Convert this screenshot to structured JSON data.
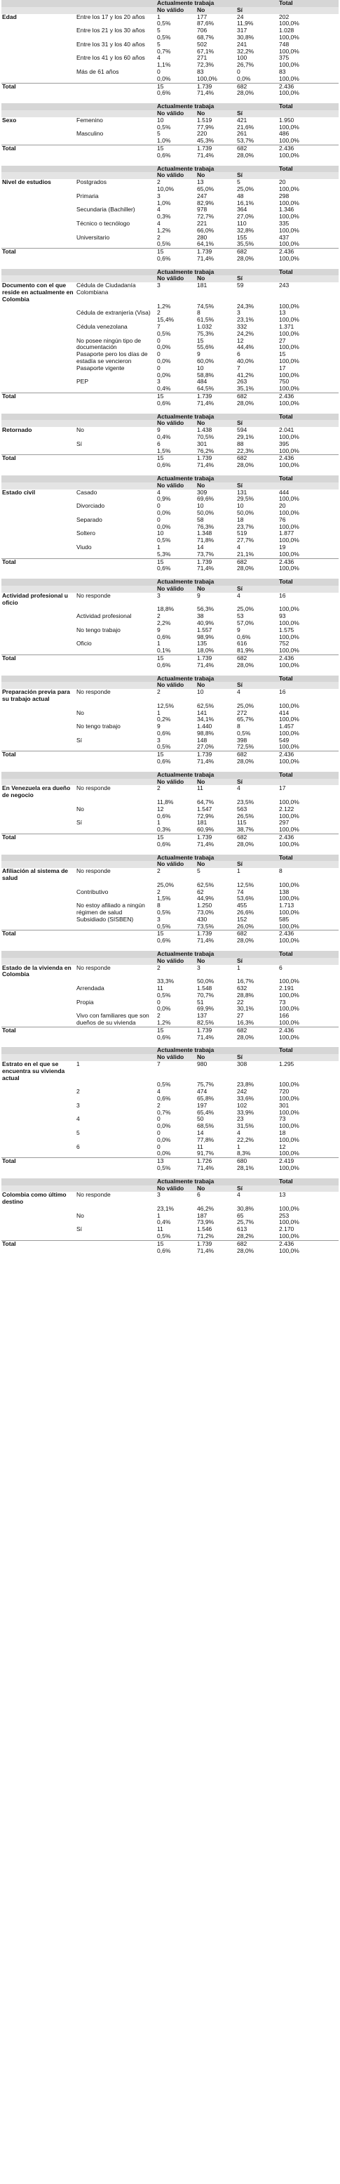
{
  "header": {
    "group_label": "Actualmente trabaja",
    "total_label": "Total",
    "columns": [
      "No válido",
      "No",
      "Sí"
    ]
  },
  "total_row_label": "Total",
  "sections": [
    {
      "variable": "Edad",
      "rows": [
        {
          "label": "Entre los 17 y los 20 años",
          "n": [
            "1",
            "177",
            "24",
            "202"
          ],
          "p": [
            "0,5%",
            "87,6%",
            "11,9%",
            "100,0%"
          ]
        },
        {
          "label": "Entre los 21 y los 30 años",
          "n": [
            "5",
            "706",
            "317",
            "1.028"
          ],
          "p": [
            "0,5%",
            "68,7%",
            "30,8%",
            "100,0%"
          ]
        },
        {
          "label": "Entre los 31 y los 40 años",
          "n": [
            "5",
            "502",
            "241",
            "748"
          ],
          "p": [
            "0,7%",
            "67,1%",
            "32,2%",
            "100,0%"
          ]
        },
        {
          "label": "Entre los 41 y los 60 años",
          "n": [
            "4",
            "271",
            "100",
            "375"
          ],
          "p": [
            "1,1%",
            "72,3%",
            "26,7%",
            "100,0%"
          ]
        },
        {
          "label": "Más de 61 años",
          "n": [
            "0",
            "83",
            "0",
            "83"
          ],
          "p": [
            "0,0%",
            "100,0%",
            "0,0%",
            "100,0%"
          ]
        }
      ],
      "total": {
        "n": [
          "15",
          "1.739",
          "682",
          "2.436"
        ],
        "p": [
          "0,6%",
          "71,4%",
          "28,0%",
          "100,0%"
        ]
      }
    },
    {
      "variable": "Sexo",
      "rows": [
        {
          "label": "Femenino",
          "n": [
            "10",
            "1.519",
            "421",
            "1.950"
          ],
          "p": [
            "0,5%",
            "77,9%",
            "21,6%",
            "100,0%"
          ]
        },
        {
          "label": "Masculino",
          "n": [
            "5",
            "220",
            "261",
            "486"
          ],
          "p": [
            "1,0%",
            "45,3%",
            "53,7%",
            "100,0%"
          ]
        }
      ],
      "total": {
        "n": [
          "15",
          "1.739",
          "682",
          "2.436"
        ],
        "p": [
          "0,6%",
          "71,4%",
          "28,0%",
          "100,0%"
        ]
      }
    },
    {
      "variable": "Nivel de estudios",
      "rows": [
        {
          "label": "Postgrados",
          "n": [
            "2",
            "13",
            "5",
            "20"
          ],
          "p": [
            "10,0%",
            "65,0%",
            "25,0%",
            "100,0%"
          ]
        },
        {
          "label": "Primaria",
          "n": [
            "3",
            "247",
            "48",
            "298"
          ],
          "p": [
            "1,0%",
            "82,9%",
            "16,1%",
            "100,0%"
          ]
        },
        {
          "label": "Secundaria (Bachiller)",
          "n": [
            "4",
            "978",
            "364",
            "1.346"
          ],
          "p": [
            "0,3%",
            "72,7%",
            "27,0%",
            "100,0%"
          ]
        },
        {
          "label": "Técnico o tecnólogo",
          "n": [
            "4",
            "221",
            "110",
            "335"
          ],
          "p": [
            "1,2%",
            "66,0%",
            "32,8%",
            "100,0%"
          ]
        },
        {
          "label": "Universitario",
          "n": [
            "2",
            "280",
            "155",
            "437"
          ],
          "p": [
            "0,5%",
            "64,1%",
            "35,5%",
            "100,0%"
          ]
        }
      ],
      "total": {
        "n": [
          "15",
          "1.739",
          "682",
          "2.436"
        ],
        "p": [
          "0,6%",
          "71,4%",
          "28,0%",
          "100,0%"
        ]
      }
    },
    {
      "variable": "Documento con el que reside en actualmente en Colombia",
      "rows": [
        {
          "label": "Cédula de Ciudadanía Colombiana",
          "n": [
            "3",
            "181",
            "59",
            "243"
          ],
          "p": [
            "1,2%",
            "74,5%",
            "24,3%",
            "100,0%"
          ]
        },
        {
          "label": "Cédula de extranjería (Visa)",
          "n": [
            "2",
            "8",
            "3",
            "13"
          ],
          "p": [
            "15,4%",
            "61,5%",
            "23,1%",
            "100,0%"
          ]
        },
        {
          "label": "Cédula venezolana",
          "n": [
            "7",
            "1.032",
            "332",
            "1.371"
          ],
          "p": [
            "0,5%",
            "75,3%",
            "24,2%",
            "100,0%"
          ]
        },
        {
          "label": "No posee ningún tipo de documentación",
          "n": [
            "0",
            "15",
            "12",
            "27"
          ],
          "p": [
            "0,0%",
            "55,6%",
            "44,4%",
            "100,0%"
          ]
        },
        {
          "label": "Pasaporte pero los días de estadía se vencieron",
          "n": [
            "0",
            "9",
            "6",
            "15"
          ],
          "p": [
            "0,0%",
            "60,0%",
            "40,0%",
            "100,0%"
          ]
        },
        {
          "label": "Pasaporte vigente",
          "n": [
            "0",
            "10",
            "7",
            "17"
          ],
          "p": [
            "0,0%",
            "58,8%",
            "41,2%",
            "100,0%"
          ]
        },
        {
          "label": "PEP",
          "n": [
            "3",
            "484",
            "263",
            "750"
          ],
          "p": [
            "0,4%",
            "64,5%",
            "35,1%",
            "100,0%"
          ]
        }
      ],
      "total": {
        "n": [
          "15",
          "1.739",
          "682",
          "2.436"
        ],
        "p": [
          "0,6%",
          "71,4%",
          "28,0%",
          "100,0%"
        ]
      }
    },
    {
      "variable": "Retornado",
      "rows": [
        {
          "label": "No",
          "n": [
            "9",
            "1.438",
            "594",
            "2.041"
          ],
          "p": [
            "0,4%",
            "70,5%",
            "29,1%",
            "100,0%"
          ]
        },
        {
          "label": "Sí",
          "n": [
            "6",
            "301",
            "88",
            "395"
          ],
          "p": [
            "1,5%",
            "76,2%",
            "22,3%",
            "100,0%"
          ]
        }
      ],
      "total": {
        "n": [
          "15",
          "1.739",
          "682",
          "2.436"
        ],
        "p": [
          "0,6%",
          "71,4%",
          "28,0%",
          "100,0%"
        ]
      }
    },
    {
      "variable": "Estado civil",
      "rows": [
        {
          "label": "Casado",
          "n": [
            "4",
            "309",
            "131",
            "444"
          ],
          "p": [
            "0,9%",
            "69,6%",
            "29,5%",
            "100,0%"
          ]
        },
        {
          "label": "Divorciado",
          "n": [
            "0",
            "10",
            "10",
            "20"
          ],
          "p": [
            "0,0%",
            "50,0%",
            "50,0%",
            "100,0%"
          ]
        },
        {
          "label": "Separado",
          "n": [
            "0",
            "58",
            "18",
            "76"
          ],
          "p": [
            "0,0%",
            "76,3%",
            "23,7%",
            "100,0%"
          ]
        },
        {
          "label": "Soltero",
          "n": [
            "10",
            "1.348",
            "519",
            "1.877"
          ],
          "p": [
            "0,5%",
            "71,8%",
            "27,7%",
            "100,0%"
          ]
        },
        {
          "label": "Viudo",
          "n": [
            "1",
            "14",
            "4",
            "19"
          ],
          "p": [
            "5,3%",
            "73,7%",
            "21,1%",
            "100,0%"
          ]
        }
      ],
      "total": {
        "n": [
          "15",
          "1.739",
          "682",
          "2.436"
        ],
        "p": [
          "0,6%",
          "71,4%",
          "28,0%",
          "100,0%"
        ]
      }
    },
    {
      "variable": "Actividad profesional u oficio",
      "rows": [
        {
          "label": "No responde",
          "n": [
            "3",
            "9",
            "4",
            "16"
          ],
          "p": [
            "18,8%",
            "56,3%",
            "25,0%",
            "100,0%"
          ]
        },
        {
          "label": "Actividad profesional",
          "n": [
            "2",
            "38",
            "53",
            "93"
          ],
          "p": [
            "2,2%",
            "40,9%",
            "57,0%",
            "100,0%"
          ]
        },
        {
          "label": "No tengo trabajo",
          "n": [
            "9",
            "1.557",
            "9",
            "1.575"
          ],
          "p": [
            "0,6%",
            "98,9%",
            "0,6%",
            "100,0%"
          ]
        },
        {
          "label": "Oficio",
          "n": [
            "1",
            "135",
            "616",
            "752"
          ],
          "p": [
            "0,1%",
            "18,0%",
            "81,9%",
            "100,0%"
          ]
        }
      ],
      "total": {
        "n": [
          "15",
          "1.739",
          "682",
          "2.436"
        ],
        "p": [
          "0,6%",
          "71,4%",
          "28,0%",
          "100,0%"
        ]
      }
    },
    {
      "variable": "Preparación previa para su trabajo actual",
      "rows": [
        {
          "label": "No responde",
          "n": [
            "2",
            "10",
            "4",
            "16"
          ],
          "p": [
            "12,5%",
            "62,5%",
            "25,0%",
            "100,0%"
          ]
        },
        {
          "label": "No",
          "n": [
            "1",
            "141",
            "272",
            "414"
          ],
          "p": [
            "0,2%",
            "34,1%",
            "65,7%",
            "100,0%"
          ]
        },
        {
          "label": "No tengo trabajo",
          "n": [
            "9",
            "1.440",
            "8",
            "1.457"
          ],
          "p": [
            "0,6%",
            "98,8%",
            "0,5%",
            "100,0%"
          ]
        },
        {
          "label": "Sí",
          "n": [
            "3",
            "148",
            "398",
            "549"
          ],
          "p": [
            "0,5%",
            "27,0%",
            "72,5%",
            "100,0%"
          ]
        }
      ],
      "total": {
        "n": [
          "15",
          "1.739",
          "682",
          "2.436"
        ],
        "p": [
          "0,6%",
          "71,4%",
          "28,0%",
          "100,0%"
        ]
      }
    },
    {
      "variable": "En Venezuela era dueño de negocio",
      "rows": [
        {
          "label": "No responde",
          "n": [
            "2",
            "11",
            "4",
            "17"
          ],
          "p": [
            "11,8%",
            "64,7%",
            "23,5%",
            "100,0%"
          ]
        },
        {
          "label": "No",
          "n": [
            "12",
            "1.547",
            "563",
            "2.122"
          ],
          "p": [
            "0,6%",
            "72,9%",
            "26,5%",
            "100,0%"
          ]
        },
        {
          "label": "Sí",
          "n": [
            "1",
            "181",
            "115",
            "297"
          ],
          "p": [
            "0,3%",
            "60,9%",
            "38,7%",
            "100,0%"
          ]
        }
      ],
      "total": {
        "n": [
          "15",
          "1.739",
          "682",
          "2.436"
        ],
        "p": [
          "0,6%",
          "71,4%",
          "28,0%",
          "100,0%"
        ]
      }
    },
    {
      "variable": "Afiliación al sistema de salud",
      "rows": [
        {
          "label": "No responde",
          "n": [
            "2",
            "5",
            "1",
            "8"
          ],
          "p": [
            "25,0%",
            "62,5%",
            "12,5%",
            "100,0%"
          ]
        },
        {
          "label": "Contributivo",
          "n": [
            "2",
            "62",
            "74",
            "138"
          ],
          "p": [
            "1,5%",
            "44,9%",
            "53,6%",
            "100,0%"
          ]
        },
        {
          "label": "No estoy afiliado a ningún régimen de salud",
          "n": [
            "8",
            "1.250",
            "455",
            "1.713"
          ],
          "p": [
            "0,5%",
            "73,0%",
            "26,6%",
            "100,0%"
          ]
        },
        {
          "label": "Subsidiado (SISBEN)",
          "n": [
            "3",
            "430",
            "152",
            "585"
          ],
          "p": [
            "0,5%",
            "73,5%",
            "26,0%",
            "100,0%"
          ]
        }
      ],
      "total": {
        "n": [
          "15",
          "1.739",
          "682",
          "2.436"
        ],
        "p": [
          "0,6%",
          "71,4%",
          "28,0%",
          "100,0%"
        ]
      }
    },
    {
      "variable": "Estado de la vivienda en Colombia",
      "rows": [
        {
          "label": "No responde",
          "n": [
            "2",
            "3",
            "1",
            "6"
          ],
          "p": [
            "33,3%",
            "50,0%",
            "16,7%",
            "100,0%"
          ]
        },
        {
          "label": "Arrendada",
          "n": [
            "11",
            "1.548",
            "632",
            "2.191"
          ],
          "p": [
            "0,5%",
            "70,7%",
            "28,8%",
            "100,0%"
          ]
        },
        {
          "label": "Propia",
          "n": [
            "0",
            "51",
            "22",
            "73"
          ],
          "p": [
            "0,0%",
            "69,9%",
            "30,1%",
            "100,0%"
          ]
        },
        {
          "label": "Vivo con familiares que son dueños de su vivienda",
          "n": [
            "2",
            "137",
            "27",
            "166"
          ],
          "p": [
            "1,2%",
            "82,5%",
            "16,3%",
            "100,0%"
          ]
        }
      ],
      "total": {
        "n": [
          "15",
          "1.739",
          "682",
          "2.436"
        ],
        "p": [
          "0,6%",
          "71,4%",
          "28,0%",
          "100,0%"
        ]
      }
    },
    {
      "variable": "Estrato en el que se encuentra su vivienda actual",
      "rows": [
        {
          "label": "1",
          "n": [
            "7",
            "980",
            "308",
            "1.295"
          ],
          "p": [
            "0,5%",
            "75,7%",
            "23,8%",
            "100,0%"
          ]
        },
        {
          "label": "2",
          "n": [
            "4",
            "474",
            "242",
            "720"
          ],
          "p": [
            "0,6%",
            "65,8%",
            "33,6%",
            "100,0%"
          ]
        },
        {
          "label": "3",
          "n": [
            "2",
            "197",
            "102",
            "301"
          ],
          "p": [
            "0,7%",
            "65,4%",
            "33,9%",
            "100,0%"
          ]
        },
        {
          "label": "4",
          "n": [
            "0",
            "50",
            "23",
            "73"
          ],
          "p": [
            "0,0%",
            "68,5%",
            "31,5%",
            "100,0%"
          ]
        },
        {
          "label": "5",
          "n": [
            "0",
            "14",
            "4",
            "18"
          ],
          "p": [
            "0,0%",
            "77,8%",
            "22,2%",
            "100,0%"
          ]
        },
        {
          "label": "6",
          "n": [
            "0",
            "11",
            "1",
            "12"
          ],
          "p": [
            "0,0%",
            "91,7%",
            "8,3%",
            "100,0%"
          ]
        }
      ],
      "total": {
        "n": [
          "13",
          "1.726",
          "680",
          "2.419"
        ],
        "p": [
          "0,5%",
          "71,4%",
          "28,1%",
          "100,0%"
        ]
      }
    },
    {
      "variable": "Colombia como último destino",
      "rows": [
        {
          "label": "No responde",
          "n": [
            "3",
            "6",
            "4",
            "13"
          ],
          "p": [
            "23,1%",
            "46,2%",
            "30,8%",
            "100,0%"
          ]
        },
        {
          "label": "No",
          "n": [
            "1",
            "187",
            "65",
            "253"
          ],
          "p": [
            "0,4%",
            "73,9%",
            "25,7%",
            "100,0%"
          ]
        },
        {
          "label": "Sí",
          "n": [
            "11",
            "1.546",
            "613",
            "2.170"
          ],
          "p": [
            "0,5%",
            "71,2%",
            "28,2%",
            "100,0%"
          ]
        }
      ],
      "total": {
        "n": [
          "15",
          "1.739",
          "682",
          "2.436"
        ],
        "p": [
          "0,6%",
          "71,4%",
          "28,0%",
          "100,0%"
        ]
      }
    }
  ]
}
